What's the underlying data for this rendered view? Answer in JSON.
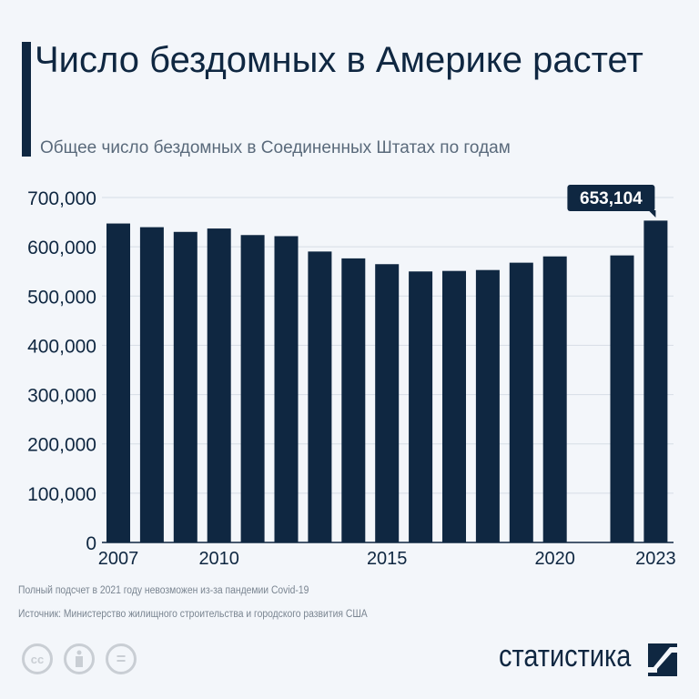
{
  "title": "Число бездомных в Америке растет",
  "subtitle": "Общее число бездомных в Соединенных Штатах по годам",
  "chart_data": {
    "type": "bar",
    "categories": [
      "2007",
      "2008",
      "2009",
      "2010",
      "2011",
      "2012",
      "2013",
      "2014",
      "2015",
      "2016",
      "2017",
      "2018",
      "2019",
      "2020",
      "2021",
      "2022",
      "2023"
    ],
    "values": [
      647258,
      639784,
      630227,
      637077,
      623788,
      621553,
      590364,
      576450,
      564708,
      549928,
      550996,
      552830,
      567715,
      580466,
      null,
      582462,
      653104
    ],
    "ylim": [
      0,
      700000
    ],
    "yticks": [
      "0",
      "100,000",
      "200,000",
      "300,000",
      "400,000",
      "500,000",
      "600,000",
      "700,000"
    ],
    "xticks": [
      "2007",
      "2010",
      "2015",
      "2020",
      "2023"
    ],
    "annotation": {
      "category": "2023",
      "label": "653,104"
    },
    "grid": true,
    "bar_color": "#0f2741"
  },
  "footer": {
    "note": "Полный подсчет в 2021 году невозможен из-за пандемии Covid-19",
    "source": "Источник: Министерство жилищного строительства и городского развития США",
    "brand": "статистика",
    "license_icons": [
      "cc-icon",
      "attribution-icon",
      "no-derivatives-icon"
    ],
    "cc_label": "cc",
    "nd_label": "="
  }
}
